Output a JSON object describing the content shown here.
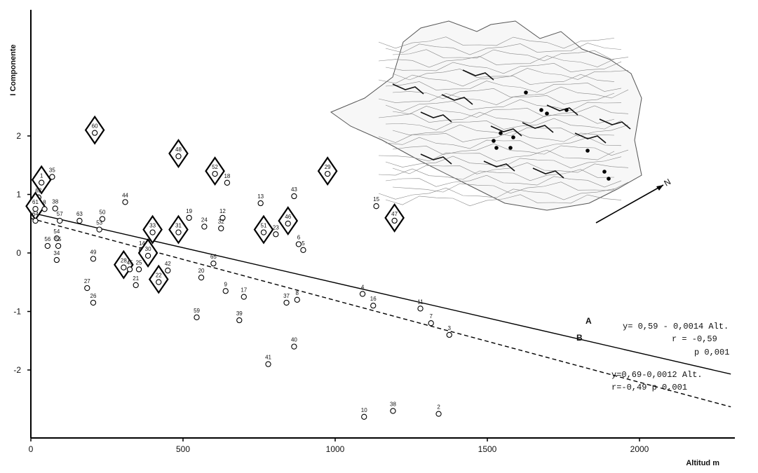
{
  "chart_data": {
    "type": "scatter",
    "title": "",
    "xlabel": "Altitud  m",
    "ylabel": "I Componente",
    "xlim": [
      0,
      2300
    ],
    "ylim": [
      -3.2,
      4
    ],
    "x_ticks": [
      "0",
      "500",
      "1000",
      "1500",
      "2000"
    ],
    "y_ticks": [
      "2",
      "1",
      "0",
      "-1",
      "-2"
    ],
    "grid": false,
    "points": [
      {
        "label": "1",
        "x": 35,
        "y": 1.25,
        "marker": "diamond"
      },
      {
        "label": "35",
        "x": 70,
        "y": 1.3,
        "marker": "circle"
      },
      {
        "label": "62",
        "x": 25,
        "y": 0.95,
        "marker": "circle"
      },
      {
        "label": "61",
        "x": 15,
        "y": 0.8,
        "marker": "diamond"
      },
      {
        "label": "8",
        "x": 45,
        "y": 0.75,
        "marker": "circle"
      },
      {
        "label": "38",
        "x": 80,
        "y": 0.76,
        "marker": "circle"
      },
      {
        "label": "64",
        "x": 15,
        "y": 0.55,
        "marker": "circle"
      },
      {
        "label": "57",
        "x": 95,
        "y": 0.55,
        "marker": "circle"
      },
      {
        "label": "63",
        "x": 160,
        "y": 0.55,
        "marker": "circle"
      },
      {
        "label": "50",
        "x": 235,
        "y": 0.58,
        "marker": "circle"
      },
      {
        "label": "53",
        "x": 225,
        "y": 0.4,
        "marker": "circle"
      },
      {
        "label": "54",
        "x": 85,
        "y": 0.25,
        "marker": "circle"
      },
      {
        "label": "56",
        "x": 55,
        "y": 0.12,
        "marker": "circle"
      },
      {
        "label": "55",
        "x": 90,
        "y": 0.12,
        "marker": "circle"
      },
      {
        "label": "34",
        "x": 85,
        "y": -0.12,
        "marker": "circle"
      },
      {
        "label": "49",
        "x": 205,
        "y": -0.1,
        "marker": "circle"
      },
      {
        "label": "60",
        "x": 210,
        "y": 2.1,
        "marker": "diamond"
      },
      {
        "label": "44",
        "x": 310,
        "y": 0.87,
        "marker": "circle"
      },
      {
        "label": "48",
        "x": 485,
        "y": 1.7,
        "marker": "diamond"
      },
      {
        "label": "52",
        "x": 605,
        "y": 1.4,
        "marker": "diamond"
      },
      {
        "label": "18",
        "x": 645,
        "y": 1.2,
        "marker": "circle"
      },
      {
        "label": "19",
        "x": 520,
        "y": 0.6,
        "marker": "circle"
      },
      {
        "label": "33",
        "x": 400,
        "y": 0.4,
        "marker": "diamond"
      },
      {
        "label": "31",
        "x": 485,
        "y": 0.4,
        "marker": "diamond"
      },
      {
        "label": "24",
        "x": 570,
        "y": 0.45,
        "marker": "circle"
      },
      {
        "label": "12",
        "x": 630,
        "y": 0.6,
        "marker": "circle"
      },
      {
        "label": "32",
        "x": 625,
        "y": 0.42,
        "marker": "circle"
      },
      {
        "label": "14",
        "x": 365,
        "y": 0.05,
        "marker": "circle"
      },
      {
        "label": "30",
        "x": 385,
        "y": 0.0,
        "marker": "diamond"
      },
      {
        "label": "28",
        "x": 305,
        "y": -0.2,
        "marker": "diamond"
      },
      {
        "label": "25",
        "x": 355,
        "y": -0.28,
        "marker": "circle"
      },
      {
        "label": "45",
        "x": 325,
        "y": -0.28,
        "marker": "circle"
      },
      {
        "label": "42",
        "x": 450,
        "y": -0.3,
        "marker": "circle"
      },
      {
        "label": "22",
        "x": 420,
        "y": -0.45,
        "marker": "diamond"
      },
      {
        "label": "21",
        "x": 345,
        "y": -0.55,
        "marker": "circle"
      },
      {
        "label": "27",
        "x": 185,
        "y": -0.6,
        "marker": "circle"
      },
      {
        "label": "26",
        "x": 205,
        "y": -0.85,
        "marker": "circle"
      },
      {
        "label": "20",
        "x": 560,
        "y": -0.42,
        "marker": "circle"
      },
      {
        "label": "65",
        "x": 600,
        "y": -0.18,
        "marker": "circle"
      },
      {
        "label": "9",
        "x": 640,
        "y": -0.65,
        "marker": "circle"
      },
      {
        "label": "17",
        "x": 700,
        "y": -0.75,
        "marker": "circle"
      },
      {
        "label": "59",
        "x": 545,
        "y": -1.1,
        "marker": "circle"
      },
      {
        "label": "39",
        "x": 685,
        "y": -1.15,
        "marker": "circle"
      },
      {
        "label": "13",
        "x": 755,
        "y": 0.85,
        "marker": "circle"
      },
      {
        "label": "43",
        "x": 865,
        "y": 0.97,
        "marker": "circle"
      },
      {
        "label": "46",
        "x": 845,
        "y": 0.55,
        "marker": "diamond"
      },
      {
        "label": "51",
        "x": 765,
        "y": 0.4,
        "marker": "diamond"
      },
      {
        "label": "23",
        "x": 805,
        "y": 0.32,
        "marker": "circle"
      },
      {
        "label": "6",
        "x": 880,
        "y": 0.15,
        "marker": "circle"
      },
      {
        "label": "5",
        "x": 895,
        "y": 0.05,
        "marker": "circle"
      },
      {
        "label": "29",
        "x": 975,
        "y": 1.4,
        "marker": "diamond"
      },
      {
        "label": "8",
        "x": 875,
        "y": -0.8,
        "marker": "circle"
      },
      {
        "label": "37",
        "x": 840,
        "y": -0.85,
        "marker": "circle"
      },
      {
        "label": "41",
        "x": 780,
        "y": -1.9,
        "marker": "circle"
      },
      {
        "label": "40",
        "x": 865,
        "y": -1.6,
        "marker": "circle"
      },
      {
        "label": "15",
        "x": 1135,
        "y": 0.8,
        "marker": "circle"
      },
      {
        "label": "47",
        "x": 1195,
        "y": 0.6,
        "marker": "diamond"
      },
      {
        "label": "4",
        "x": 1090,
        "y": -0.7,
        "marker": "circle"
      },
      {
        "label": "16",
        "x": 1125,
        "y": -0.9,
        "marker": "circle"
      },
      {
        "label": "11",
        "x": 1280,
        "y": -0.95,
        "marker": "circle"
      },
      {
        "label": "7",
        "x": 1315,
        "y": -1.2,
        "marker": "circle"
      },
      {
        "label": "3",
        "x": 1375,
        "y": -1.4,
        "marker": "circle"
      },
      {
        "label": "10",
        "x": 1095,
        "y": -2.8,
        "marker": "circle"
      },
      {
        "label": "38",
        "x": 1190,
        "y": -2.7,
        "marker": "circle"
      },
      {
        "label": "2",
        "x": 1340,
        "y": -2.75,
        "marker": "circle"
      }
    ],
    "regression_lines": [
      {
        "name": "A",
        "intercept": 0.59,
        "slope": -0.0014,
        "style": "dashed",
        "equation": "y= 0,59 - 0,0014 Alt.",
        "r": "r = -0,59",
        "p": "p 0,001"
      },
      {
        "name": "B",
        "intercept": 0.69,
        "slope": -0.0012,
        "style": "solid",
        "equation": "y=0,69-0,0012 Alt.",
        "stats": "r=-0,49   p  0,001"
      }
    ],
    "inset": {
      "north_label": "N"
    }
  }
}
